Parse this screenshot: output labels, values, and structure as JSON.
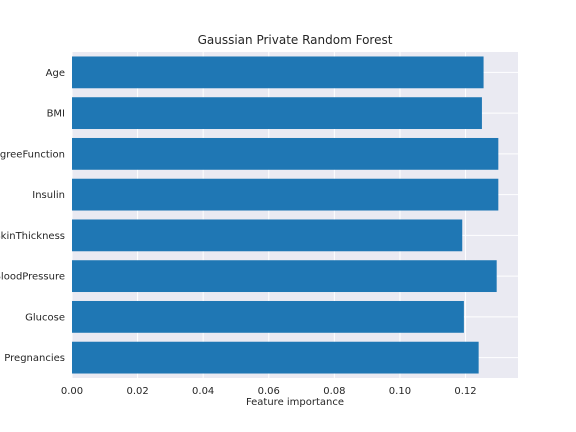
{
  "chart_data": {
    "type": "bar",
    "orientation": "horizontal",
    "title": "Gaussian Private Random Forest",
    "xlabel": "Feature importance",
    "ylabel": "",
    "categories": [
      "Pregnancies",
      "Glucose",
      "BloodPressure",
      "SkinThickness",
      "Insulin",
      "DiabetesPedigreeFunction",
      "BMI",
      "Age"
    ],
    "values": [
      0.124,
      0.1195,
      0.1295,
      0.119,
      0.13,
      0.13,
      0.125,
      0.1255
    ],
    "xlim": [
      0,
      0.136
    ],
    "xticks": [
      "0.00",
      "0.02",
      "0.04",
      "0.06",
      "0.08",
      "0.10",
      "0.12"
    ],
    "bar_color": "#1f77b4",
    "background": "#eaeaf2",
    "grid": true
  }
}
